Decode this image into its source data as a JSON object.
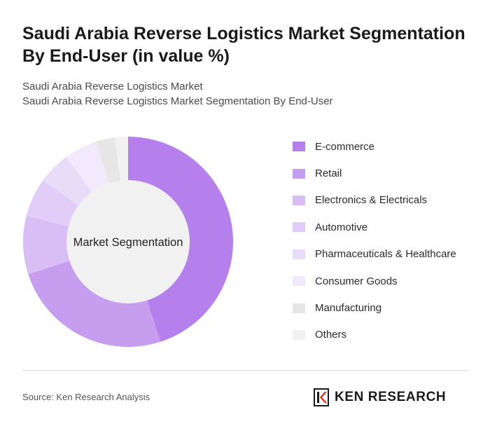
{
  "header": {
    "title": "Saudi Arabia Reverse Logistics Market Segmentation By End-User (in value %)",
    "subtitle_line1": "Saudi Arabia Reverse Logistics Market",
    "subtitle_line2": "Saudi Arabia Reverse Logistics Market Segmentation By End-User"
  },
  "chart_data": {
    "type": "pie",
    "center_label": "Market Segmentation",
    "legend_position": "right",
    "slices": [
      {
        "label": "E-commerce",
        "value": 45,
        "color": "#b57fec"
      },
      {
        "label": "Retail",
        "value": 25,
        "color": "#c79df0"
      },
      {
        "label": "Electronics & Electricals",
        "value": 9,
        "color": "#d8bef5"
      },
      {
        "label": "Automotive",
        "value": 6,
        "color": "#e1cdf7"
      },
      {
        "label": "Pharmaceuticals & Healthcare",
        "value": 5,
        "color": "#e9dcf9"
      },
      {
        "label": "Consumer Goods",
        "value": 5,
        "color": "#f2eafc"
      },
      {
        "label": "Manufacturing",
        "value": 3,
        "color": "#e6e6e6"
      },
      {
        "label": "Others",
        "value": 2,
        "color": "#f1f1f1"
      }
    ]
  },
  "footer": {
    "source": "Source: Ken Research Analysis",
    "logo_text": "KEN RESEARCH"
  }
}
